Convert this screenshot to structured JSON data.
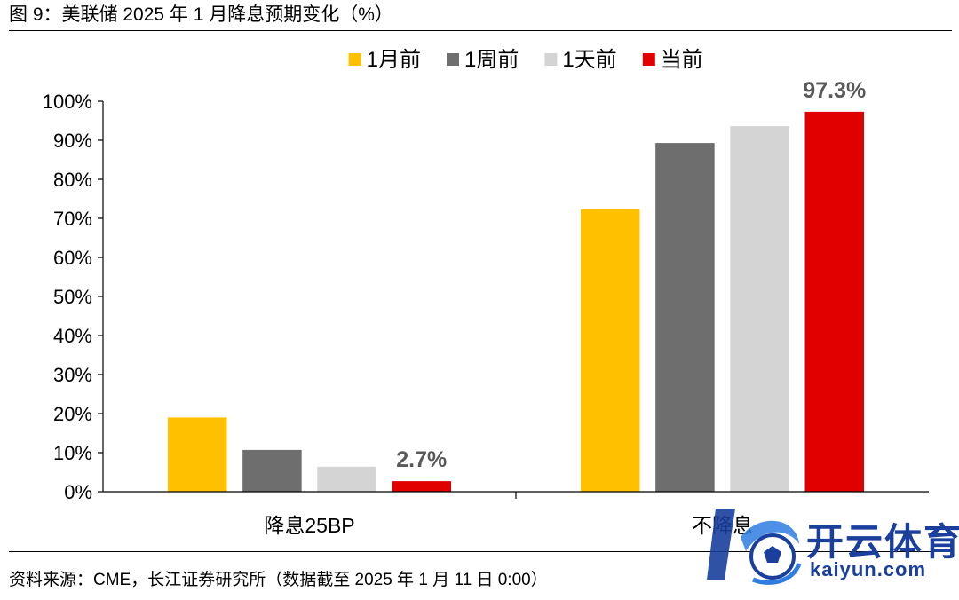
{
  "figure_title": "图 9：美联储 2025 年 1 月降息预期变化（%）",
  "source_note": "资料来源：CME，长江证券研究所（数据截至 2025 年 1 月 11 日 0:00）",
  "colors": {
    "1月前": "#FFC000",
    "1周前": "#6E6E6E",
    "1天前": "#D4D4D4",
    "当前": "#E00000",
    "axis": "#000000",
    "value_label": "#595959"
  },
  "chart_data": {
    "type": "bar",
    "categories": [
      "降息25BP",
      "不降息"
    ],
    "series": [
      {
        "name": "1月前",
        "values": [
          19.0,
          72.3
        ]
      },
      {
        "name": "1周前",
        "values": [
          10.7,
          89.3
        ]
      },
      {
        "name": "1天前",
        "values": [
          6.4,
          93.6
        ]
      },
      {
        "name": "当前",
        "values": [
          2.7,
          97.3
        ]
      }
    ],
    "yticks": [
      "0%",
      "10%",
      "20%",
      "30%",
      "40%",
      "50%",
      "60%",
      "70%",
      "80%",
      "90%",
      "100%"
    ],
    "ylim": [
      0,
      100
    ],
    "annotations": [
      {
        "series": "当前",
        "category": "降息25BP",
        "text": "2.7%"
      },
      {
        "series": "当前",
        "category": "不降息",
        "text": "97.3%"
      }
    ],
    "legend_position": "top-center",
    "grid": false
  },
  "watermark": {
    "text_cn": "开云体育",
    "text_en": "kaiyun.com",
    "logo_icon": "soccer-ball-icon"
  }
}
